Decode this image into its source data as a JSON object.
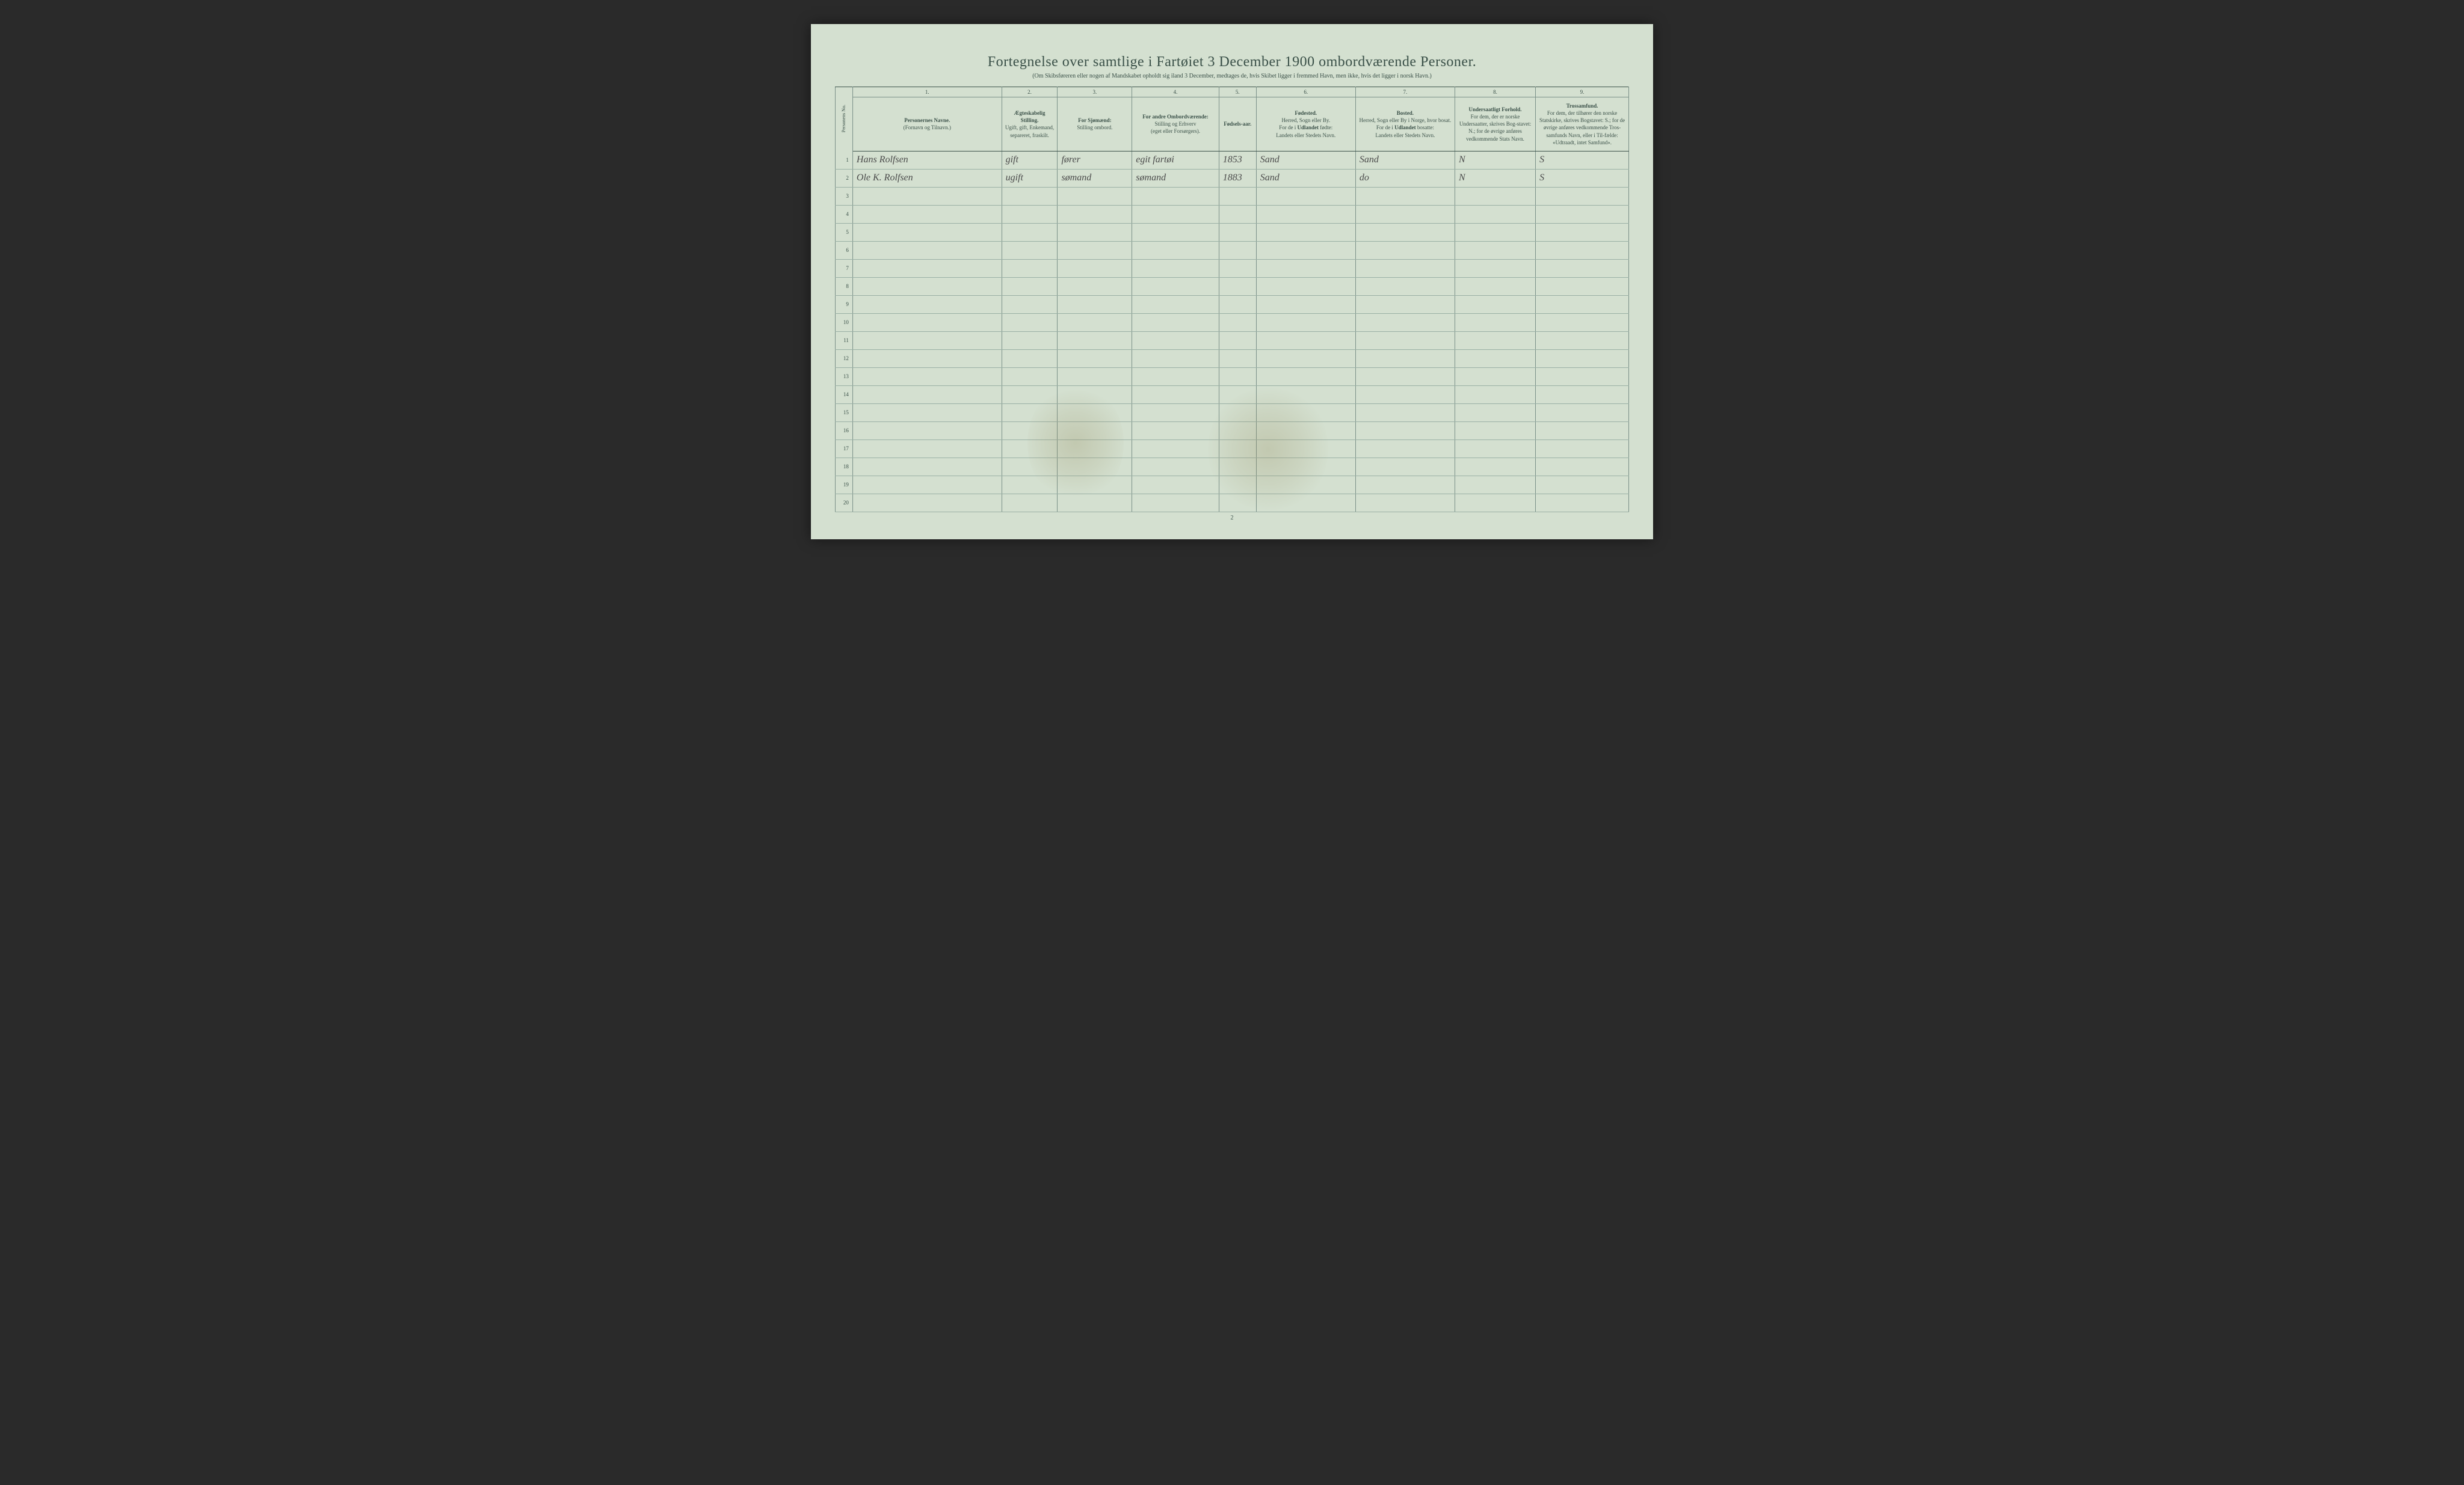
{
  "document": {
    "title": "Fortegnelse over samtlige i Fartøiet 3 December 1900 ombordværende Personer.",
    "subtitle": "(Om Skibsføreren eller nogen af Mandskabet opholdt sig iland 3 December, medtages de, hvis Skibet ligger i fremmed Havn, men ikke, hvis det ligger i norsk Havn.)",
    "page_number": "2",
    "background_color": "#d4e0d0",
    "text_color": "#3a5048",
    "line_color": "#9ab0a5",
    "border_color": "#7a9088"
  },
  "columns": {
    "rownum_label": "Personens No.",
    "nums": [
      "1.",
      "2.",
      "3.",
      "4.",
      "5.",
      "6.",
      "7.",
      "8.",
      "9."
    ],
    "headers": [
      "<strong>Personernes Navne.</strong><br>(Fornavn og Tilnavn.)",
      "<strong>Ægteskabelig Stilling.</strong><br>Ugift, gift, Enkemand, separeret, fraskilt.",
      "<strong>For Sjømænd:</strong><br>Stilling ombord.",
      "<strong>For andre Ombordværende:</strong><br>Stilling og Erhverv<br>(eget eller Forsørgers).",
      "<strong>Fødsels-aar.</strong>",
      "<strong>Fødested.</strong><br>Herred, Sogn eller By.<br>For de i <strong>Udlandet</strong> fødte:<br>Landets eller Stedets Navn.",
      "<strong>Bosted.</strong><br>Herred, Sogn eller By i Norge, hvor bosat.<br>For de i <strong>Udlandet</strong> bosatte:<br>Landets eller Stedets Navn.",
      "<strong>Undersaatligt Forhold.</strong><br>For dem, der er norske Undersaatter, skrives Bog-stavet: N.; for de øvrige anføres vedkommende Stats Navn.",
      "<strong>Trossamfund.</strong><br>For dem, der tilhører den norske Statskirke, skrives Bogstavet: S.; for de øvrige anføres vedkommende Tros-samfunds Navn, eller i Til-fælde: «Udtraadt, intet Samfund»."
    ]
  },
  "rows": [
    {
      "num": "1",
      "name": "Hans Rolfsen",
      "marital": "gift",
      "sailor": "fører",
      "other": "egit fartøi",
      "year": "1853",
      "birthplace": "Sand",
      "residence": "Sand",
      "nationality": "N",
      "religion": "S"
    },
    {
      "num": "2",
      "name": "Ole K. Rolfsen",
      "marital": "ugift",
      "sailor": "sømand",
      "other": "sømand",
      "year": "1883",
      "birthplace": "Sand",
      "residence": "do",
      "nationality": "N",
      "religion": "S"
    },
    {
      "num": "3",
      "name": "",
      "marital": "",
      "sailor": "",
      "other": "",
      "year": "",
      "birthplace": "",
      "residence": "",
      "nationality": "",
      "religion": ""
    },
    {
      "num": "4",
      "name": "",
      "marital": "",
      "sailor": "",
      "other": "",
      "year": "",
      "birthplace": "",
      "residence": "",
      "nationality": "",
      "religion": ""
    },
    {
      "num": "5",
      "name": "",
      "marital": "",
      "sailor": "",
      "other": "",
      "year": "",
      "birthplace": "",
      "residence": "",
      "nationality": "",
      "religion": ""
    },
    {
      "num": "6",
      "name": "",
      "marital": "",
      "sailor": "",
      "other": "",
      "year": "",
      "birthplace": "",
      "residence": "",
      "nationality": "",
      "religion": ""
    },
    {
      "num": "7",
      "name": "",
      "marital": "",
      "sailor": "",
      "other": "",
      "year": "",
      "birthplace": "",
      "residence": "",
      "nationality": "",
      "religion": ""
    },
    {
      "num": "8",
      "name": "",
      "marital": "",
      "sailor": "",
      "other": "",
      "year": "",
      "birthplace": "",
      "residence": "",
      "nationality": "",
      "religion": ""
    },
    {
      "num": "9",
      "name": "",
      "marital": "",
      "sailor": "",
      "other": "",
      "year": "",
      "birthplace": "",
      "residence": "",
      "nationality": "",
      "religion": ""
    },
    {
      "num": "10",
      "name": "",
      "marital": "",
      "sailor": "",
      "other": "",
      "year": "",
      "birthplace": "",
      "residence": "",
      "nationality": "",
      "religion": ""
    },
    {
      "num": "11",
      "name": "",
      "marital": "",
      "sailor": "",
      "other": "",
      "year": "",
      "birthplace": "",
      "residence": "",
      "nationality": "",
      "religion": ""
    },
    {
      "num": "12",
      "name": "",
      "marital": "",
      "sailor": "",
      "other": "",
      "year": "",
      "birthplace": "",
      "residence": "",
      "nationality": "",
      "religion": ""
    },
    {
      "num": "13",
      "name": "",
      "marital": "",
      "sailor": "",
      "other": "",
      "year": "",
      "birthplace": "",
      "residence": "",
      "nationality": "",
      "religion": ""
    },
    {
      "num": "14",
      "name": "",
      "marital": "",
      "sailor": "",
      "other": "",
      "year": "",
      "birthplace": "",
      "residence": "",
      "nationality": "",
      "religion": ""
    },
    {
      "num": "15",
      "name": "",
      "marital": "",
      "sailor": "",
      "other": "",
      "year": "",
      "birthplace": "",
      "residence": "",
      "nationality": "",
      "religion": ""
    },
    {
      "num": "16",
      "name": "",
      "marital": "",
      "sailor": "",
      "other": "",
      "year": "",
      "birthplace": "",
      "residence": "",
      "nationality": "",
      "religion": ""
    },
    {
      "num": "17",
      "name": "",
      "marital": "",
      "sailor": "",
      "other": "",
      "year": "",
      "birthplace": "",
      "residence": "",
      "nationality": "",
      "religion": ""
    },
    {
      "num": "18",
      "name": "",
      "marital": "",
      "sailor": "",
      "other": "",
      "year": "",
      "birthplace": "",
      "residence": "",
      "nationality": "",
      "religion": ""
    },
    {
      "num": "19",
      "name": "",
      "marital": "",
      "sailor": "",
      "other": "",
      "year": "",
      "birthplace": "",
      "residence": "",
      "nationality": "",
      "religion": ""
    },
    {
      "num": "20",
      "name": "",
      "marital": "",
      "sailor": "",
      "other": "",
      "year": "",
      "birthplace": "",
      "residence": "",
      "nationality": "",
      "religion": ""
    }
  ]
}
